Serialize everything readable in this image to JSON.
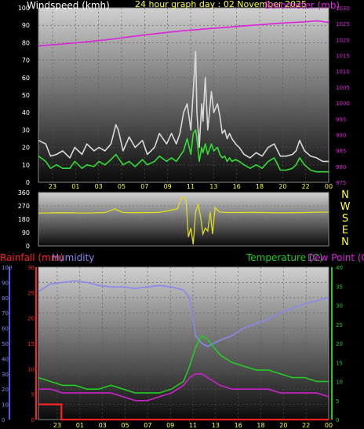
{
  "title": "24 hour graph day : 02 November 2025",
  "panel_wind": {
    "label_speed": "Windspeed (kmh)",
    "label_baro": "Barometer (mb)",
    "x_ticks": [
      "23",
      "01",
      "03",
      "05",
      "07",
      "09",
      "11",
      "13",
      "16",
      "18",
      "20",
      "22",
      "00"
    ],
    "y_left_ticks": [
      "0",
      "10",
      "20",
      "30",
      "40",
      "50",
      "60",
      "70",
      "80",
      "90",
      "100"
    ],
    "y_right_ticks": [
      "975",
      "980",
      "985",
      "990",
      "995",
      "1000",
      "1005",
      "1010",
      "1015",
      "1020",
      "1025",
      "1030"
    ]
  },
  "panel_dir": {
    "y_ticks": [
      "0",
      "90",
      "180",
      "270",
      "360"
    ],
    "compass": [
      "N",
      "W",
      "S",
      "E",
      "N"
    ]
  },
  "panel_env": {
    "label_rain": "Rainfall (mm)",
    "label_hum": "Humidity",
    "label_temp": "Temperature (C)",
    "label_dew": "Dew Point (C)",
    "x_ticks": [
      "23",
      "01",
      "03",
      "05",
      "07",
      "09",
      "11",
      "13",
      "16",
      "18",
      "20",
      "22",
      "00"
    ],
    "y_hum_ticks": [
      "0",
      "10",
      "20",
      "30",
      "40",
      "50",
      "60",
      "70",
      "80",
      "90",
      "100"
    ],
    "y_rain_ticks": [
      "0",
      "5",
      "10",
      "15",
      "20",
      "25",
      "30"
    ],
    "y_temp_ticks": [
      "0",
      "5",
      "10",
      "15",
      "20",
      "25",
      "30",
      "35",
      "40"
    ]
  },
  "colors": {
    "gust": "#d8d8d8",
    "wind": "#33dd33",
    "baro": "#dd22dd",
    "direction": "#dddd22",
    "rain": "#ff2222",
    "humidity": "#8888ee",
    "temperature": "#22cc22",
    "dewpoint": "#cc22cc",
    "axis_text": "#ffff33"
  },
  "chart_data": [
    {
      "type": "line",
      "x_unit": "hour",
      "x_range": [
        22,
        46
      ],
      "ylim_left": [
        0,
        100
      ],
      "ylim_right": [
        975,
        1030
      ],
      "series": [
        {
          "name": "Windspeed (kmh)",
          "role": "gust",
          "axis": "left",
          "x": [
            22,
            22.6,
            23,
            23.5,
            24,
            24.6,
            25,
            25.6,
            26,
            26.6,
            27,
            27.5,
            28,
            28.4,
            28.6,
            29,
            29.5,
            30,
            30.6,
            31,
            31.6,
            32,
            32.6,
            33,
            33.4,
            33.7,
            34,
            34.3,
            34.6,
            34.8,
            35,
            35.1,
            35.3,
            35.5,
            35.6,
            35.8,
            36,
            36.3,
            36.5,
            36.8,
            37,
            37.2,
            37.4,
            37.6,
            37.8,
            38,
            38.3,
            38.6,
            39,
            39.5,
            40,
            40.5,
            41,
            41.5,
            42,
            42.5,
            43,
            43.3,
            43.6,
            44,
            44.5,
            45,
            45.5,
            46
          ],
          "y": [
            24,
            22,
            15,
            16,
            18,
            14,
            20,
            16,
            22,
            18,
            20,
            18,
            22,
            33,
            30,
            18,
            26,
            20,
            24,
            16,
            20,
            28,
            22,
            28,
            22,
            28,
            40,
            45,
            30,
            52,
            75,
            40,
            20,
            45,
            35,
            60,
            30,
            52,
            40,
            45,
            38,
            28,
            30,
            25,
            28,
            25,
            22,
            20,
            16,
            14,
            17,
            15,
            20,
            22,
            15,
            15,
            16,
            18,
            24,
            18,
            15,
            14,
            12,
            12
          ]
        },
        {
          "name": "Wind average",
          "role": "wind",
          "axis": "left",
          "x": [
            22,
            22.6,
            23,
            23.5,
            24,
            24.6,
            25,
            25.6,
            26,
            26.6,
            27,
            27.5,
            28,
            28.4,
            28.6,
            29,
            29.5,
            30,
            30.6,
            31,
            31.6,
            32,
            32.6,
            33,
            33.4,
            33.7,
            34,
            34.3,
            34.6,
            34.8,
            35,
            35.1,
            35.3,
            35.5,
            35.6,
            35.8,
            36,
            36.3,
            36.5,
            36.8,
            37,
            37.2,
            37.4,
            37.6,
            37.8,
            38,
            38.3,
            38.6,
            39,
            39.5,
            40,
            40.5,
            41,
            41.5,
            42,
            42.5,
            43,
            43.3,
            43.6,
            44,
            44.5,
            45,
            45.5,
            46
          ],
          "y": [
            15,
            12,
            8,
            10,
            8,
            8,
            12,
            8,
            10,
            9,
            12,
            10,
            13,
            16,
            14,
            10,
            12,
            9,
            13,
            10,
            12,
            15,
            12,
            14,
            12,
            15,
            18,
            25,
            16,
            28,
            30,
            25,
            12,
            20,
            17,
            22,
            16,
            22,
            18,
            20,
            16,
            14,
            15,
            12,
            14,
            12,
            13,
            12,
            10,
            8,
            10,
            8,
            12,
            14,
            7,
            7,
            8,
            10,
            14,
            10,
            7,
            6,
            6,
            6
          ]
        },
        {
          "name": "Barometer (mb)",
          "role": "baro",
          "axis": "right",
          "x": [
            22,
            24,
            26,
            28,
            30,
            32,
            34,
            36,
            38,
            40,
            42,
            44,
            45,
            46
          ],
          "y": [
            1018,
            1018.6,
            1019.3,
            1020.1,
            1021.1,
            1022,
            1022.8,
            1023.4,
            1024,
            1024.6,
            1025.2,
            1025.6,
            1025.9,
            1025.4
          ]
        }
      ]
    },
    {
      "type": "line",
      "x_unit": "hour",
      "x_range": [
        22,
        46
      ],
      "ylim": [
        0,
        360
      ],
      "series": [
        {
          "name": "Wind direction",
          "role": "direction",
          "x": [
            22,
            24,
            26,
            27.5,
            28,
            28.3,
            28.6,
            29,
            30,
            32,
            33.5,
            33.8,
            34,
            34.2,
            34.4,
            34.6,
            34.8,
            35,
            35.2,
            35.4,
            35.6,
            35.8,
            36,
            36.2,
            36.4,
            36.6,
            36.8,
            37,
            37.5,
            40,
            42,
            44,
            46
          ],
          "y": [
            222,
            224,
            222,
            225,
            240,
            250,
            238,
            225,
            224,
            226,
            250,
            320,
            330,
            310,
            60,
            120,
            10,
            230,
            280,
            200,
            80,
            120,
            100,
            230,
            80,
            260,
            240,
            228,
            225,
            226,
            223,
            225,
            228
          ]
        }
      ]
    },
    {
      "type": "line",
      "x_unit": "hour",
      "x_range": [
        22,
        46
      ],
      "ylim_humidity": [
        0,
        100
      ],
      "ylim_rain": [
        0,
        30
      ],
      "ylim_temp": [
        0,
        40
      ],
      "series": [
        {
          "name": "Humidity",
          "role": "humidity",
          "axis": "humidity",
          "x": [
            22,
            23,
            24,
            25,
            26,
            27,
            28,
            29,
            30,
            31,
            32,
            33,
            34,
            34.5,
            35,
            35.5,
            36,
            37,
            38,
            39,
            40,
            41,
            42,
            43,
            44,
            45,
            46
          ],
          "y": [
            84,
            89,
            90,
            91,
            90,
            88,
            87,
            87,
            86,
            87,
            88,
            87,
            85,
            80,
            55,
            50,
            48,
            52,
            55,
            60,
            63,
            66,
            70,
            73,
            76,
            78,
            80
          ]
        },
        {
          "name": "Rainfall (mm)",
          "role": "rain",
          "axis": "rain",
          "x": [
            22,
            23.9,
            23.9,
            46
          ],
          "y": [
            3,
            3,
            0,
            0
          ]
        },
        {
          "name": "Temperature (C)",
          "role": "temperature",
          "axis": "temp",
          "x": [
            22,
            23,
            24,
            25,
            26,
            27,
            28,
            29,
            30,
            31,
            32,
            33,
            34,
            34.5,
            35,
            35.5,
            36,
            37,
            38,
            39,
            40,
            41,
            42,
            43,
            44,
            45,
            46
          ],
          "y": [
            11,
            10,
            9,
            9,
            8,
            8,
            9,
            8,
            7,
            7,
            7,
            8,
            10,
            14,
            19,
            22,
            21,
            17,
            15,
            14,
            13,
            13,
            12,
            11,
            11,
            10,
            10
          ]
        },
        {
          "name": "Dew Point (C)",
          "role": "dewpoint",
          "axis": "temp",
          "x": [
            22,
            23,
            24,
            25,
            26,
            27,
            28,
            29,
            30,
            31,
            32,
            33,
            34,
            34.5,
            35,
            35.5,
            36,
            37,
            38,
            39,
            40,
            41,
            42,
            43,
            44,
            45,
            46
          ],
          "y": [
            8,
            8,
            7,
            7,
            7,
            7,
            7,
            6,
            5,
            5,
            6,
            7,
            9,
            11,
            12,
            12,
            11,
            9,
            8,
            8,
            8,
            8,
            7,
            7,
            7,
            7,
            6
          ]
        }
      ]
    }
  ]
}
